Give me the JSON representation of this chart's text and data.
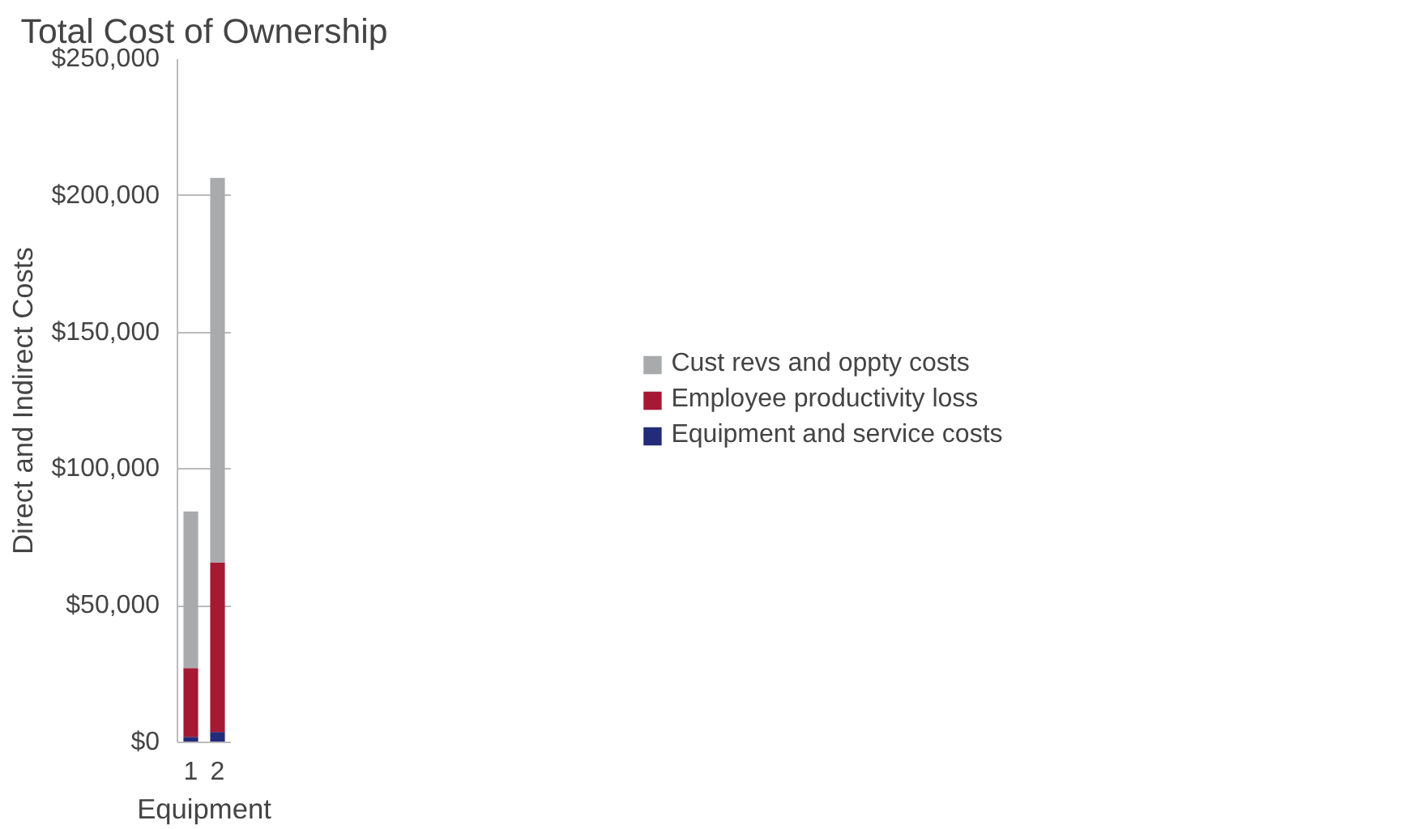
{
  "chart_data": {
    "type": "bar",
    "title": "Total Cost of Ownership",
    "xlabel": "Equipment",
    "ylabel": "Direct and Indirect Costs",
    "categories": [
      "1",
      "2"
    ],
    "stacked": true,
    "series": [
      {
        "name": "Equipment and service costs",
        "color": "#232c7a",
        "values": [
          2000,
          3800
        ]
      },
      {
        "name": "Employee productivity loss",
        "color": "#a51a33",
        "values": [
          25200,
          62000
        ]
      },
      {
        "name": "Cust revs and oppty costs",
        "color": "#a9aaac",
        "values": [
          57300,
          140700
        ]
      }
    ],
    "ylim": [
      0,
      250000
    ],
    "yticks": [
      {
        "value": 0,
        "label": "$0"
      },
      {
        "value": 50000,
        "label": "$50,000"
      },
      {
        "value": 100000,
        "label": "$100,000"
      },
      {
        "value": 150000,
        "label": "$150,000"
      },
      {
        "value": 200000,
        "label": "$200,000"
      },
      {
        "value": 250000,
        "label": "$250,000"
      }
    ],
    "grid": "y",
    "legend": "right"
  }
}
